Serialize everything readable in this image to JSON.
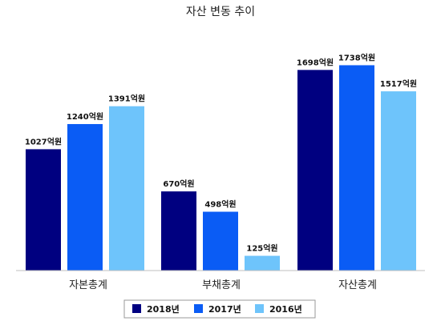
{
  "chart_data": {
    "type": "bar",
    "title": "자산 변동 추이",
    "categories": [
      "자본총계",
      "부채총계",
      "자산총계"
    ],
    "unit_suffix": "억원",
    "series": [
      {
        "name": "2018년",
        "color": "#000080",
        "values": [
          1027,
          670,
          1698
        ]
      },
      {
        "name": "2017년",
        "color": "#0a5cf5",
        "values": [
          1240,
          498,
          1738
        ]
      },
      {
        "name": "2016년",
        "color": "#6ec4fb",
        "values": [
          1391,
          125,
          1517
        ]
      }
    ],
    "xlabel": "",
    "ylabel": "",
    "ylim": [
      0,
      1800
    ],
    "grid": false,
    "legend": "bottom"
  }
}
